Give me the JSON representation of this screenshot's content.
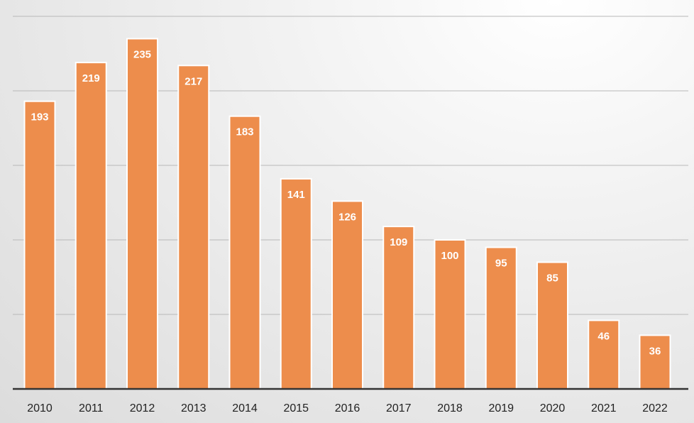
{
  "chart_data": {
    "type": "bar",
    "title": "",
    "xlabel": "",
    "ylabel": "",
    "categories": [
      "2010",
      "2011",
      "2012",
      "2013",
      "2014",
      "2015",
      "2016",
      "2017",
      "2018",
      "2019",
      "2020",
      "2021",
      "2022"
    ],
    "values": [
      193,
      219,
      235,
      217,
      183,
      141,
      126,
      109,
      100,
      95,
      85,
      46,
      36
    ],
    "ylim": [
      0,
      250
    ],
    "y_gridlines": [
      50,
      100,
      150,
      200,
      250
    ],
    "grid": true,
    "legend": "none",
    "data_labels": "inside-top",
    "colors": {
      "bar": "#ED8D4C",
      "bar_outline": "#ffffff",
      "label_text": "#ffffff",
      "gridline": "#b8b8b8",
      "axis": "#333333"
    }
  }
}
